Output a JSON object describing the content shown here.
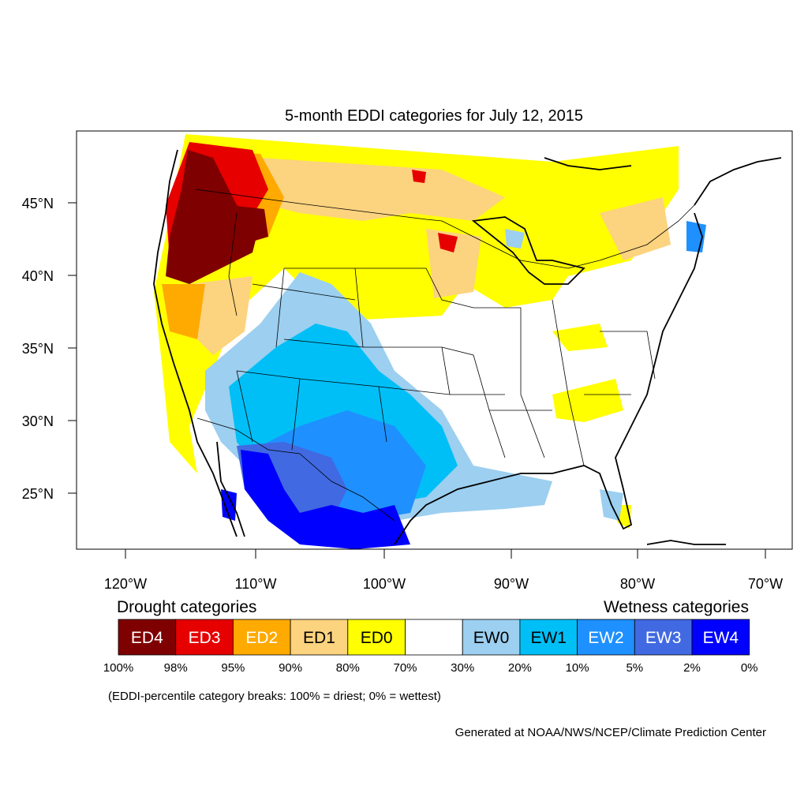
{
  "title": "5-month EDDI categories for July 12, 2015",
  "map": {
    "lat_ticks": [
      "45°N",
      "40°N",
      "35°N",
      "30°N",
      "25°N"
    ],
    "lon_ticks": [
      "120°W",
      "110°W",
      "100°W",
      "90°W",
      "80°W",
      "70°W"
    ]
  },
  "legend": {
    "drought_heading": "Drought categories",
    "wetness_heading": "Wetness categories",
    "categories": [
      {
        "label": "ED4",
        "color": "#7f0000",
        "text_color": "#ffffff"
      },
      {
        "label": "ED3",
        "color": "#e60000",
        "text_color": "#ffffff"
      },
      {
        "label": "ED2",
        "color": "#ffaa00",
        "text_color": "#ffffff"
      },
      {
        "label": "ED1",
        "color": "#fcd37f",
        "text_color": "#000000"
      },
      {
        "label": "ED0",
        "color": "#ffff00",
        "text_color": "#000000"
      },
      {
        "label": "",
        "color": "#ffffff",
        "text_color": "#000000"
      },
      {
        "label": "EW0",
        "color": "#9ccff0",
        "text_color": "#000000"
      },
      {
        "label": "EW1",
        "color": "#00bff7",
        "text_color": "#000000"
      },
      {
        "label": "EW2",
        "color": "#1e90ff",
        "text_color": "#ffffff"
      },
      {
        "label": "EW3",
        "color": "#4169e1",
        "text_color": "#ffffff"
      },
      {
        "label": "EW4",
        "color": "#0000ff",
        "text_color": "#ffffff"
      }
    ],
    "breaks": [
      "100%",
      "98%",
      "95%",
      "90%",
      "80%",
      "70%",
      "30%",
      "20%",
      "10%",
      "5%",
      "2%",
      "0%"
    ],
    "note": "(EDDI-percentile category breaks: 100% = driest; 0% = wettest)"
  },
  "credit": "Generated at NOAA/NWS/NCEP/Climate Prediction Center"
}
